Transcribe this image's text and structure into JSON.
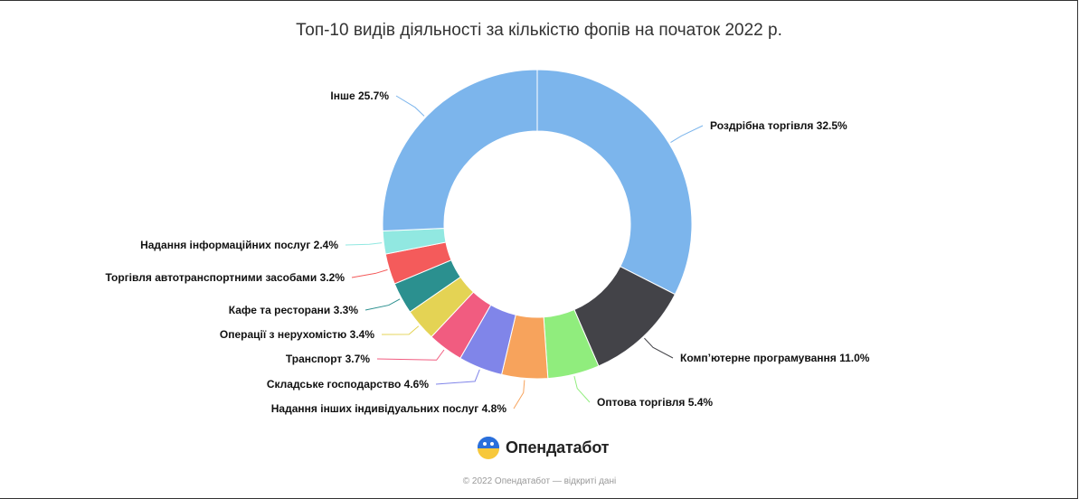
{
  "chart_data": {
    "type": "pie",
    "title": "Топ-10 видів діяльності за кількістю фопів на початок 2022 р.",
    "donut": true,
    "categories": [
      "Роздрібна торгівля",
      "Комп'ютерне програмування",
      "Оптова торгівля",
      "Надання інших індивідуальних послуг",
      "Складське господарство",
      "Транспорт",
      "Операції з нерухомістю",
      "Кафе та ресторани",
      "Торгівля автотранспортними засобами",
      "Надання інформаційних послуг",
      "Інше"
    ],
    "values": [
      32.5,
      11.0,
      5.4,
      4.8,
      4.6,
      3.7,
      3.4,
      3.3,
      3.2,
      2.4,
      25.7
    ],
    "labels": [
      "Роздрібна торгівля 32.5%",
      "Комп’ютерне програмування 11.0%",
      "Оптова торгівля 5.4%",
      "Надання інших індивідуальних послуг 4.8%",
      "Складське господарство 4.6%",
      "Транспорт 3.7%",
      "Операції з нерухомістю 3.4%",
      "Кафе та ресторани 3.3%",
      "Торгівля автотранспортними засобами 3.2%",
      "Надання інформаційних послуг 2.4%",
      "Інше 25.7%"
    ],
    "colors": [
      "#7cb5ec",
      "#434348",
      "#90ed7d",
      "#f7a35c",
      "#8085e9",
      "#f15c80",
      "#e4d354",
      "#2b908f",
      "#f45b5b",
      "#91e8e1",
      "#7cb5ec"
    ]
  },
  "brand": {
    "name": "Опендатабот"
  },
  "footer": {
    "text": "© 2022 Опендатабот — відкриті дані"
  }
}
